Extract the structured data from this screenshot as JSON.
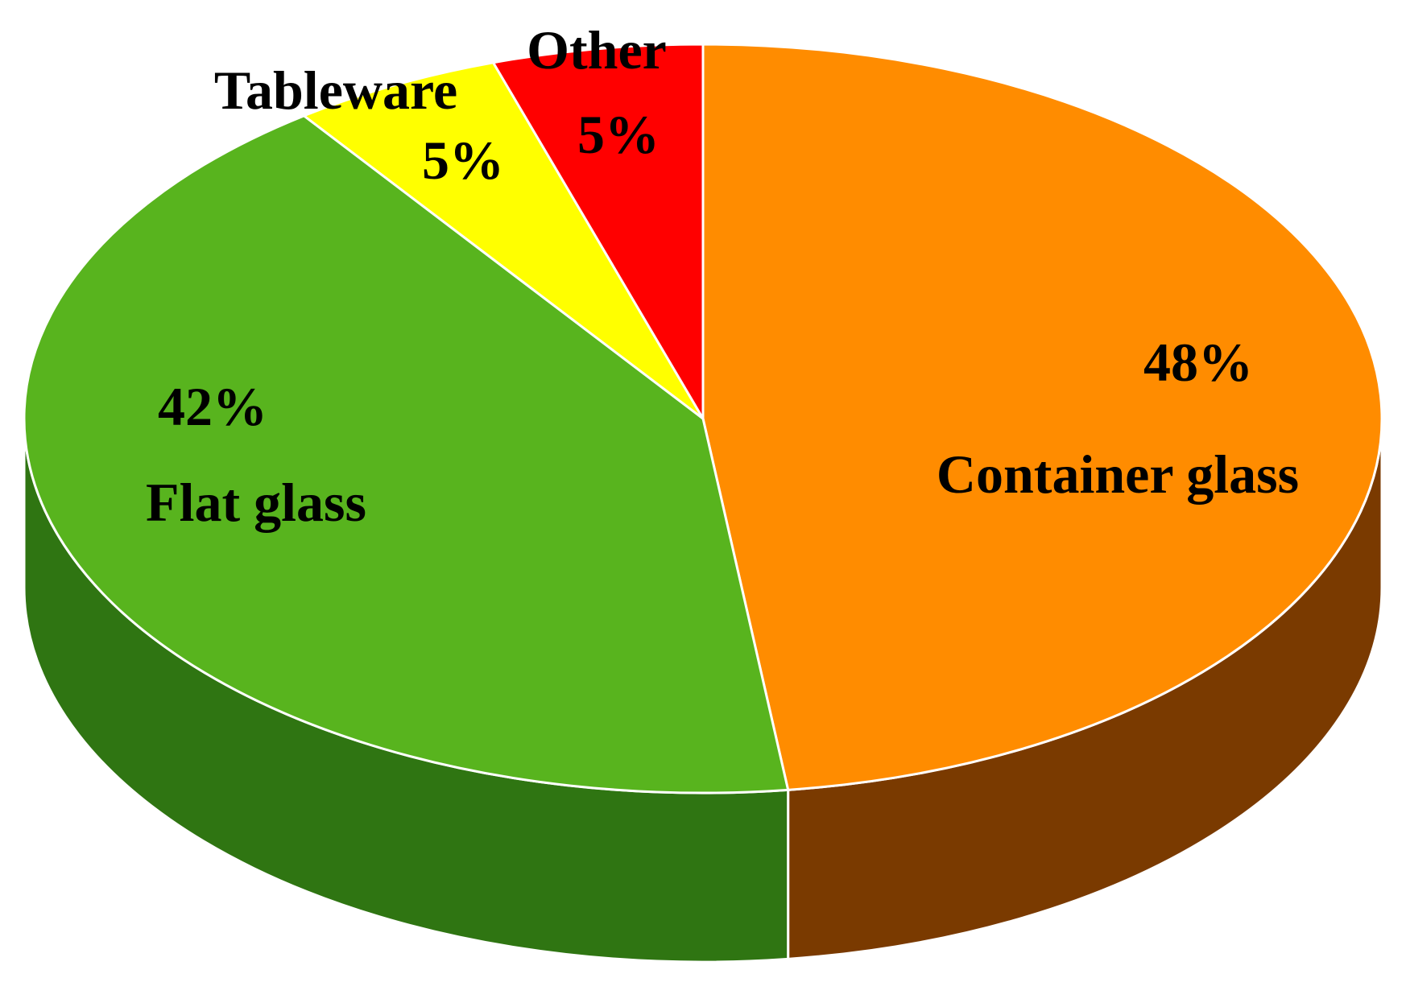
{
  "chart_data": {
    "type": "pie",
    "title": "",
    "slices": [
      {
        "label": "Container glass",
        "value": 48,
        "value_label": "48%",
        "color": "#FF8C00",
        "side_color": "#7A3A00"
      },
      {
        "label": "Flat glass",
        "value": 42,
        "value_label": "42%",
        "color": "#58B41E",
        "side_color": "#2F7512"
      },
      {
        "label": "Tableware",
        "value": 5,
        "value_label": "5%",
        "color": "#FFFF00",
        "side_color": "#9A9A00"
      },
      {
        "label": "Other",
        "value": 5,
        "value_label": "5%",
        "color": "#FF0000",
        "side_color": "#8A0000"
      }
    ],
    "start": "top (12 o'clock), clockwise",
    "style": "3D exploded-free tilted pie",
    "legend": "none",
    "labels": "category name and percentage on or beside each slice"
  }
}
